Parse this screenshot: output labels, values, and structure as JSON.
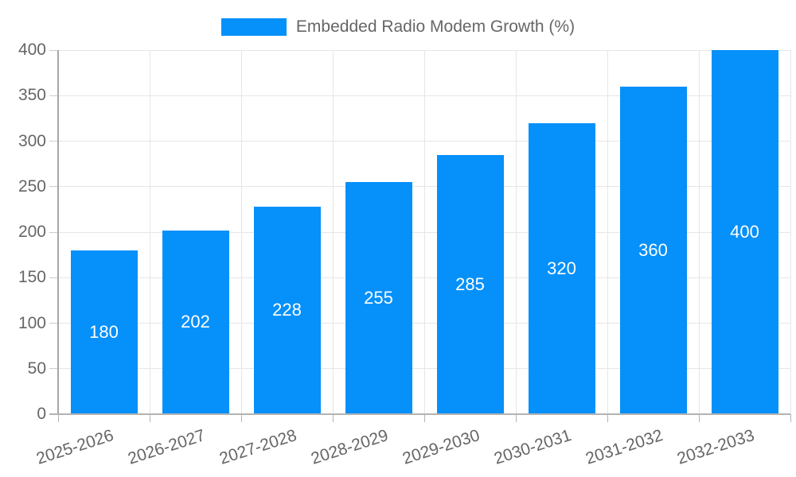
{
  "chart_data": {
    "type": "bar",
    "title": "",
    "legend": {
      "label": "Embedded Radio Modem Growth (%)",
      "position": "top-center"
    },
    "categories": [
      "2025-2026",
      "2026-2027",
      "2027-2028",
      "2028-2029",
      "2029-2030",
      "2030-2031",
      "2031-2032",
      "2032-2033"
    ],
    "series": [
      {
        "name": "Embedded Radio Modem Growth (%)",
        "values": [
          180,
          202,
          228,
          255,
          285,
          320,
          360,
          400
        ]
      }
    ],
    "value_labels": [
      "180",
      "202",
      "228",
      "255",
      "285",
      "320",
      "360",
      "400"
    ],
    "xlabel": "",
    "ylabel": "",
    "ylim": [
      0,
      400
    ],
    "yticks": [
      0,
      50,
      100,
      150,
      200,
      250,
      300,
      350,
      400
    ],
    "grid": true,
    "x_label_rotation_deg": -18,
    "colors": {
      "bar": "#0590fa",
      "axis_text": "#666666",
      "value_label_text": "#ffffff",
      "gridline": "#e6e6e6",
      "y_axis_line": "#a6a6a6",
      "x_axis_line": "#b3b3b3"
    }
  }
}
